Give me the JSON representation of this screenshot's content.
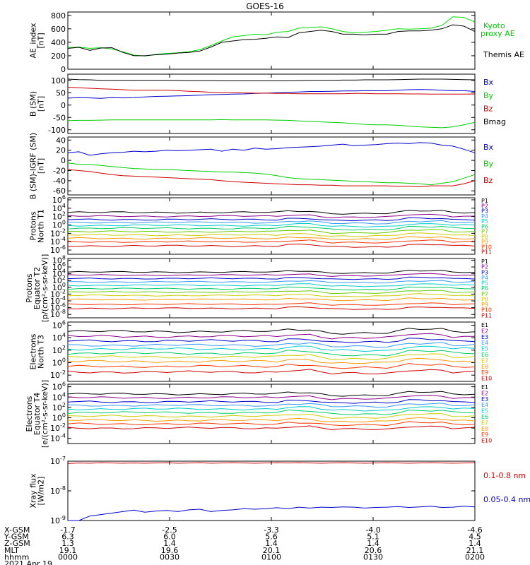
{
  "title": "GOES-16",
  "chart_data": [
    {
      "type": "line",
      "ylabel": "AE_index\n[nT]",
      "ylim": [
        0,
        850
      ],
      "yscale": "linear",
      "yticks": [
        0,
        200,
        400,
        600,
        800
      ],
      "legend": [
        "Kyoto\nproxy AE",
        "Themis AE"
      ],
      "series": [
        {
          "name": "Kyoto\nproxy AE",
          "color": "#00dd00",
          "values": [
            320,
            330,
            310,
            320,
            300,
            260,
            210,
            195,
            220,
            235,
            245,
            260,
            290,
            350,
            420,
            480,
            500,
            520,
            510,
            550,
            560,
            610,
            620,
            630,
            600,
            560,
            540,
            550,
            560,
            580,
            600,
            595,
            600,
            610,
            650,
            780,
            770,
            700
          ]
        },
        {
          "name": "Themis AE",
          "color": "#000000",
          "values": [
            310,
            325,
            280,
            315,
            320,
            250,
            200,
            200,
            215,
            225,
            240,
            250,
            270,
            330,
            400,
            420,
            440,
            445,
            460,
            480,
            470,
            540,
            560,
            580,
            560,
            520,
            520,
            510,
            520,
            520,
            560,
            570,
            570,
            580,
            600,
            660,
            640,
            560
          ]
        }
      ]
    },
    {
      "type": "line",
      "ylabel": "B (SM)\n[nT]",
      "ylim": [
        -115,
        125
      ],
      "yscale": "linear",
      "yticks": [
        -100,
        -50,
        0,
        50,
        100
      ],
      "legend": [
        "Bx",
        "By",
        "Bz",
        "Bmag"
      ],
      "series": [
        {
          "name": "Bx",
          "color": "#0000cc",
          "values": [
            28,
            30,
            29,
            27,
            30,
            29,
            30,
            33,
            35,
            36,
            37,
            38,
            40,
            42,
            43,
            44,
            45,
            47,
            48,
            50,
            52,
            53,
            55,
            55,
            56,
            57,
            57,
            58,
            58,
            58,
            60,
            62,
            63,
            62,
            60,
            58,
            58,
            55
          ]
        },
        {
          "name": "By",
          "color": "#00cc00",
          "values": [
            -63,
            -62,
            -62,
            -61,
            -60,
            -60,
            -60,
            -60,
            -60,
            -60,
            -60,
            -60,
            -60,
            -60,
            -59,
            -60,
            -60,
            -60,
            -60,
            -61,
            -62,
            -64,
            -66,
            -68,
            -70,
            -72,
            -75,
            -78,
            -80,
            -80,
            -82,
            -85,
            -88,
            -90,
            -92,
            -88,
            -80,
            -70
          ]
        },
        {
          "name": "Bz",
          "color": "#cc0000",
          "values": [
            72,
            70,
            68,
            66,
            64,
            62,
            60,
            60,
            60,
            60,
            58,
            56,
            54,
            52,
            50,
            50,
            49,
            48,
            48,
            47,
            47,
            46,
            46,
            46,
            46,
            46,
            47,
            47,
            46,
            46,
            46,
            45,
            45,
            44,
            44,
            44,
            44,
            45
          ]
        },
        {
          "name": "Bmag",
          "color": "#000000",
          "values": [
            105,
            103,
            102,
            100,
            100,
            100,
            100,
            100,
            100,
            100,
            100,
            99,
            99,
            99,
            98,
            98,
            98,
            98,
            98,
            98,
            98,
            99,
            100,
            100,
            100,
            101,
            101,
            102,
            102,
            102,
            103,
            104,
            105,
            105,
            105,
            104,
            103,
            102
          ]
        }
      ]
    },
    {
      "type": "line",
      "ylabel": "B (SM)-IGRF (SM)\n[nT]",
      "ylim": [
        -68,
        46
      ],
      "yscale": "linear",
      "yticks": [
        -60,
        -40,
        -20,
        0,
        20,
        40
      ],
      "legend": [
        "Bx",
        "By",
        "Bz"
      ],
      "series": [
        {
          "name": "Bx",
          "color": "#0000cc",
          "values": [
            15,
            17,
            10,
            13,
            15,
            16,
            18,
            17,
            18,
            20,
            19,
            20,
            21,
            22,
            18,
            22,
            20,
            24,
            22,
            23,
            25,
            26,
            27,
            28,
            30,
            32,
            29,
            30,
            31,
            33,
            34,
            33,
            35,
            34,
            30,
            28,
            22,
            15
          ]
        },
        {
          "name": "By",
          "color": "#00cc00",
          "values": [
            -5,
            -8,
            -8,
            -10,
            -12,
            -14,
            -16,
            -17,
            -18,
            -18,
            -19,
            -20,
            -21,
            -22,
            -23,
            -23,
            -24,
            -25,
            -27,
            -30,
            -34,
            -36,
            -37,
            -38,
            -39,
            -40,
            -41,
            -42,
            -43,
            -44,
            -44,
            -45,
            -46,
            -48,
            -45,
            -42,
            -35,
            -28
          ]
        },
        {
          "name": "Bz",
          "color": "#cc0000",
          "values": [
            -18,
            -20,
            -22,
            -25,
            -28,
            -30,
            -31,
            -32,
            -33,
            -34,
            -35,
            -36,
            -37,
            -38,
            -40,
            -42,
            -43,
            -44,
            -45,
            -46,
            -47,
            -48,
            -48,
            -49,
            -49,
            -50,
            -50,
            -50,
            -50,
            -50,
            -51,
            -51,
            -52,
            -50,
            -50,
            -50,
            -46,
            -40
          ]
        }
      ]
    },
    {
      "type": "line",
      "ylabel": "Protons\nNorth T1",
      "yscale": "log",
      "ylim": [
        -7,
        6.5
      ],
      "yticks_exp": [
        -6,
        -4,
        -2,
        0,
        2,
        4,
        6
      ],
      "legend": [
        "P1",
        "P2",
        "P3",
        "P4",
        "P5",
        "P6",
        "P7",
        "P8",
        "P9",
        "P10",
        "P11"
      ],
      "series": [
        {
          "name": "P1",
          "color": "#000000",
          "base": 3
        },
        {
          "name": "P2",
          "color": "#8b008b",
          "base": 2.1
        },
        {
          "name": "P3",
          "color": "#0000cc",
          "base": 1.3
        },
        {
          "name": "P4",
          "color": "#3399ff",
          "base": 0.6
        },
        {
          "name": "P5",
          "color": "#00cccc",
          "base": -0.1
        },
        {
          "name": "P6",
          "color": "#00cc66",
          "base": -0.8
        },
        {
          "name": "P7",
          "color": "#66cc00",
          "base": -1.6
        },
        {
          "name": "P8",
          "color": "#cccc00",
          "base": -2.4
        },
        {
          "name": "P9",
          "color": "#ff9900",
          "base": -3.2
        },
        {
          "name": "P10",
          "color": "#ff3300",
          "base": -4
        },
        {
          "name": "P11",
          "color": "#cc0000",
          "base": -5
        }
      ]
    },
    {
      "type": "line",
      "ylabel": "Protons\nEquator T2\n[p/(cm²-s-sr-keV)]",
      "yscale": "log",
      "ylim": [
        -9,
        8.5
      ],
      "yticks_exp": [
        -8,
        -6,
        -4,
        -2,
        0,
        2,
        4,
        6,
        8
      ],
      "legend": [
        "P1",
        "P2",
        "P3",
        "P4",
        "P5",
        "P6",
        "P7",
        "P8",
        "P9",
        "P10",
        "P11"
      ],
      "series": [
        {
          "name": "P1",
          "color": "#000000",
          "base": 4.5
        },
        {
          "name": "P2",
          "color": "#8b008b",
          "base": 3.6
        },
        {
          "name": "P3",
          "color": "#0000cc",
          "base": 2.6
        },
        {
          "name": "P4",
          "color": "#3399ff",
          "base": 1.6
        },
        {
          "name": "P5",
          "color": "#00cccc",
          "base": 0.6
        },
        {
          "name": "P6",
          "color": "#00cc66",
          "base": -0.4
        },
        {
          "name": "P7",
          "color": "#66cc00",
          "base": -1.4
        },
        {
          "name": "P8",
          "color": "#cccc00",
          "base": -2.4
        },
        {
          "name": "P9",
          "color": "#ff9900",
          "base": -3.6
        },
        {
          "name": "P10",
          "color": "#ff3300",
          "base": -5
        },
        {
          "name": "P11",
          "color": "#cc0000",
          "base": -6.2
        }
      ]
    },
    {
      "type": "line",
      "ylabel": "Electrons\nNorth T3",
      "yscale": "log",
      "ylim": [
        -3,
        6.5
      ],
      "yticks_exp": [
        -2,
        0,
        2,
        4,
        6
      ],
      "legend": [
        "E1",
        "E2",
        "E3",
        "E4",
        "E5",
        "E6",
        "E7",
        "E8",
        "E9",
        "E10"
      ],
      "series": [
        {
          "name": "E1",
          "color": "#000000",
          "base": 5
        },
        {
          "name": "E2",
          "color": "#8b008b",
          "base": 4.2
        },
        {
          "name": "E3",
          "color": "#0000cc",
          "base": 3.5
        },
        {
          "name": "E4",
          "color": "#3399ff",
          "base": 2.8
        },
        {
          "name": "E5",
          "color": "#00cccc",
          "base": 2.2
        },
        {
          "name": "E6",
          "color": "#00cc66",
          "base": 1.5
        },
        {
          "name": "E7",
          "color": "#cccc00",
          "base": 0.9
        },
        {
          "name": "E8",
          "color": "#ff9900",
          "base": 0.2
        },
        {
          "name": "E9",
          "color": "#ff3300",
          "base": -0.6
        },
        {
          "name": "E10",
          "color": "#cc0000",
          "base": -1.5
        }
      ]
    },
    {
      "type": "line",
      "ylabel": "Electrons\nEquator T4\n[e/(cm²-s-sr-keV)]",
      "yscale": "log",
      "ylim": [
        -5,
        6.5
      ],
      "yticks_exp": [
        -4,
        -2,
        0,
        2,
        4,
        6
      ],
      "legend": [
        "E1",
        "E2",
        "E3",
        "E4",
        "E5",
        "E6",
        "E7",
        "E8",
        "E9",
        "E10"
      ],
      "series": [
        {
          "name": "E1",
          "color": "#000000",
          "base": 4.6
        },
        {
          "name": "E2",
          "color": "#8b008b",
          "base": 3.9
        },
        {
          "name": "E3",
          "color": "#0000cc",
          "base": 3.1
        },
        {
          "name": "E4",
          "color": "#3399ff",
          "base": 2.4
        },
        {
          "name": "E5",
          "color": "#00cccc",
          "base": 1.7
        },
        {
          "name": "E6",
          "color": "#00cc66",
          "base": 1
        },
        {
          "name": "E7",
          "color": "#cccc00",
          "base": 0.3
        },
        {
          "name": "E8",
          "color": "#ff9900",
          "base": -0.5
        },
        {
          "name": "E9",
          "color": "#ff3300",
          "base": -1.2
        },
        {
          "name": "E10",
          "color": "#cc0000",
          "base": -2
        }
      ]
    },
    {
      "type": "line",
      "ylabel": "Xray flux\n[W/m2]",
      "yscale": "log",
      "ylim": [
        -9,
        -7
      ],
      "yticks_exp": [
        -9,
        -8,
        -7
      ],
      "legend": [
        "0.1-0.8 nm",
        "0.05-0.4 nm"
      ],
      "series": [
        {
          "name": "0.1-0.8 nm",
          "color": "#cc0000",
          "values_exp": [
            -7.08,
            -7.06,
            -7.07,
            -7.05,
            -7.06,
            -7.07,
            -7.06,
            -7.07,
            -7.06,
            -7.05,
            -7.07,
            -7.06,
            -7.05,
            -7.07,
            -7.06,
            -7.05,
            -7.06,
            -7.07,
            -7.06,
            -7.05,
            -7.06,
            -7.05,
            -7.06,
            -7.07,
            -7.06,
            -7.05,
            -7.06,
            -7.07,
            -7.06,
            -7.05,
            -7.06,
            -7.07,
            -7.06,
            -7.05,
            -7.06,
            -7.07,
            -7.06,
            -7.05
          ]
        },
        {
          "name": "0.05-0.4 nm",
          "color": "#0000cc",
          "values_exp": [
            -9.3,
            -9.1,
            -8.85,
            -8.8,
            -8.75,
            -8.7,
            -8.65,
            -8.72,
            -8.68,
            -8.66,
            -8.7,
            -8.64,
            -8.62,
            -8.7,
            -8.66,
            -8.64,
            -8.6,
            -8.62,
            -8.6,
            -8.57,
            -8.6,
            -8.55,
            -8.58,
            -8.55,
            -8.56,
            -8.54,
            -8.55,
            -8.58,
            -8.56,
            -8.55,
            -8.53,
            -8.56,
            -8.54,
            -8.52,
            -8.56,
            -8.55,
            -8.52,
            -8.54
          ]
        }
      ]
    }
  ],
  "axis_table": {
    "rows": [
      {
        "label": "X-GSM",
        "values": [
          "-1.7",
          "-2.5",
          "-3.3",
          "-4.0",
          "-4.6"
        ]
      },
      {
        "label": "Y-GSM",
        "values": [
          "6.3",
          "6.0",
          "5.6",
          "5.1",
          "4.5"
        ]
      },
      {
        "label": "Z-GSM",
        "values": [
          "1.3",
          "1.4",
          "1.4",
          "1.4",
          "1.4"
        ]
      },
      {
        "label": "MLT",
        "values": [
          "19.1",
          "19.6",
          "20.1",
          "20.6",
          "21.1"
        ]
      },
      {
        "label": "hhmm",
        "values": [
          "0000",
          "0030",
          "0100",
          "0130",
          "0200"
        ]
      }
    ],
    "date": "2021 Apr 19"
  }
}
